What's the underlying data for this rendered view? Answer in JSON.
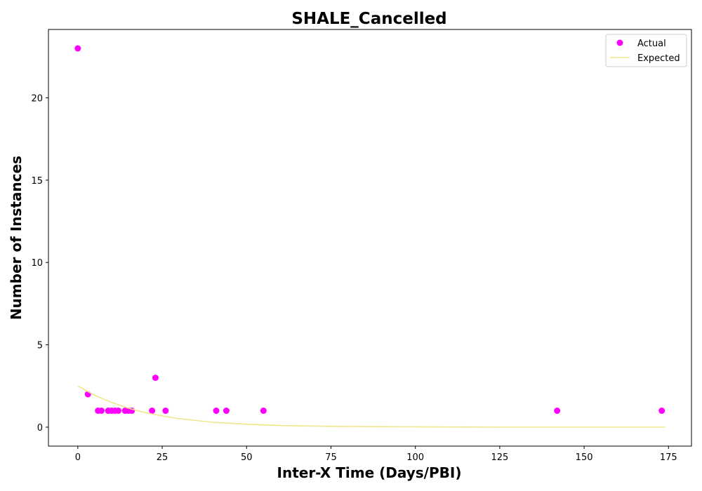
{
  "chart_data": {
    "type": "scatter",
    "title": "SHALE_Cancelled",
    "xlabel": "Inter-X Time (Days/PBI)",
    "ylabel": "Number of Instances",
    "xlim": [
      -8.7,
      181.8
    ],
    "ylim": [
      -1.15,
      24.15
    ],
    "xticks": [
      0,
      25,
      50,
      75,
      100,
      125,
      150,
      175
    ],
    "yticks": [
      0,
      5,
      10,
      15,
      20
    ],
    "grid": false,
    "legend_position": "top-right",
    "series": [
      {
        "name": "Actual",
        "kind": "scatter",
        "color": "#ff00ff",
        "points": [
          {
            "x": 0,
            "y": 23
          },
          {
            "x": 3,
            "y": 2
          },
          {
            "x": 6,
            "y": 1
          },
          {
            "x": 7,
            "y": 1
          },
          {
            "x": 9,
            "y": 1
          },
          {
            "x": 10,
            "y": 1
          },
          {
            "x": 11,
            "y": 1
          },
          {
            "x": 12,
            "y": 1
          },
          {
            "x": 14,
            "y": 1
          },
          {
            "x": 15,
            "y": 1
          },
          {
            "x": 16,
            "y": 1
          },
          {
            "x": 22,
            "y": 1
          },
          {
            "x": 23,
            "y": 3
          },
          {
            "x": 26,
            "y": 1
          },
          {
            "x": 41,
            "y": 1
          },
          {
            "x": 44,
            "y": 1
          },
          {
            "x": 55,
            "y": 1
          },
          {
            "x": 142,
            "y": 1
          },
          {
            "x": 173,
            "y": 1
          }
        ]
      },
      {
        "name": "Expected",
        "kind": "line",
        "color": "#f0e68c",
        "points": [
          {
            "x": 0,
            "y": 2.5
          },
          {
            "x": 5,
            "y": 1.94
          },
          {
            "x": 10,
            "y": 1.5
          },
          {
            "x": 15,
            "y": 1.15
          },
          {
            "x": 20,
            "y": 0.88
          },
          {
            "x": 25,
            "y": 0.68
          },
          {
            "x": 30,
            "y": 0.52
          },
          {
            "x": 40,
            "y": 0.3
          },
          {
            "x": 50,
            "y": 0.18
          },
          {
            "x": 60,
            "y": 0.1
          },
          {
            "x": 75,
            "y": 0.05
          },
          {
            "x": 100,
            "y": 0.02
          },
          {
            "x": 125,
            "y": 0.0
          },
          {
            "x": 150,
            "y": 0.0
          },
          {
            "x": 174,
            "y": 0.0
          }
        ]
      }
    ]
  }
}
